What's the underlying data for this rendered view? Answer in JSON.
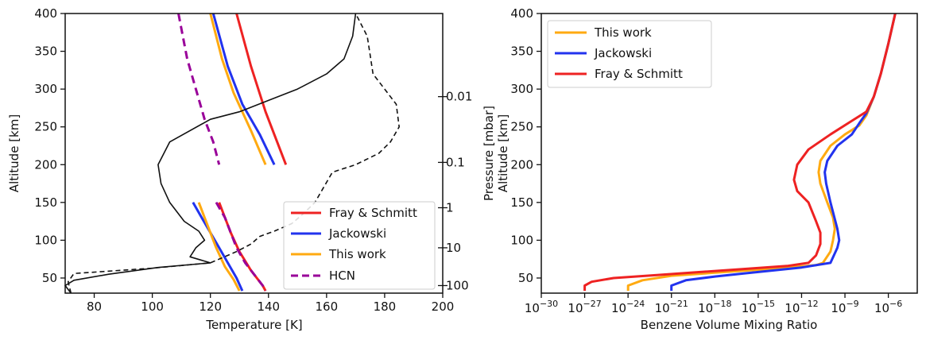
{
  "chart_data": [
    {
      "type": "line",
      "xlabel": "Temperature [K]",
      "ylabel": "Altitude [km]",
      "y2label": "Pressure [mbar]",
      "xlim": [
        70,
        200
      ],
      "ylim": [
        30,
        400
      ],
      "xticks": [
        80,
        100,
        120,
        140,
        160,
        180,
        200
      ],
      "yticks": [
        50,
        100,
        150,
        200,
        250,
        300,
        350,
        400
      ],
      "y2ticks": [
        {
          "label": "0.01",
          "altitude": 290
        },
        {
          "label": "0.1",
          "altitude": 203
        },
        {
          "label": "1",
          "altitude": 143
        },
        {
          "label": "10",
          "altitude": 90
        },
        {
          "label": "100",
          "altitude": 40
        }
      ],
      "grid": false,
      "legend_position": "lower-right",
      "legend": [
        "Fray & Schmitt",
        "Jackowski",
        "This work",
        "HCN"
      ],
      "series": [
        {
          "name": "Fray & Schmitt",
          "color": "#ee2222",
          "dash": false,
          "segments": [
            [
              [
                129,
                400
              ],
              [
                134,
                330
              ],
              [
                139,
                270
              ],
              [
                143,
                230
              ],
              [
                146,
                200
              ]
            ],
            [
              [
                123,
                150
              ],
              [
                125,
                130
              ],
              [
                127,
                110
              ],
              [
                130,
                85
              ],
              [
                134,
                60
              ],
              [
                138,
                40
              ],
              [
                139,
                33
              ]
            ]
          ]
        },
        {
          "name": "Jackowski",
          "color": "#2233ee",
          "dash": false,
          "segments": [
            [
              [
                121,
                400
              ],
              [
                126,
                330
              ],
              [
                131,
                280
              ],
              [
                137,
                240
              ],
              [
                142,
                200
              ]
            ],
            [
              [
                114,
                150
              ],
              [
                117,
                130
              ],
              [
                120,
                110
              ],
              [
                123,
                90
              ],
              [
                126,
                70
              ],
              [
                129,
                50
              ],
              [
                131,
                33
              ]
            ]
          ]
        },
        {
          "name": "This work",
          "color": "#ffaa11",
          "dash": false,
          "segments": [
            [
              [
                120,
                400
              ],
              [
                124,
                340
              ],
              [
                128,
                295
              ],
              [
                134,
                245
              ],
              [
                139,
                200
              ]
            ],
            [
              [
                116,
                150
              ],
              [
                118,
                130
              ],
              [
                120,
                110
              ],
              [
                122,
                90
              ],
              [
                125,
                65
              ],
              [
                128,
                48
              ],
              [
                130,
                33
              ]
            ]
          ]
        },
        {
          "name": "HCN",
          "color": "#990099",
          "dash": true,
          "segments": [
            [
              [
                109,
                400
              ],
              [
                112,
                340
              ],
              [
                115,
                300
              ],
              [
                118,
                260
              ],
              [
                121,
                230
              ],
              [
                123,
                200
              ]
            ],
            [
              [
                122,
                150
              ],
              [
                125,
                130
              ],
              [
                127,
                110
              ],
              [
                129,
                90
              ],
              [
                132,
                70
              ],
              [
                135,
                55
              ],
              [
                138,
                40
              ],
              [
                139,
                33
              ]
            ]
          ]
        },
        {
          "name": "",
          "color": "#111111",
          "dash": false,
          "segments": [
            [
              [
                72,
                30
              ],
              [
                70,
                40
              ],
              [
                73,
                47
              ],
              [
                85,
                55
              ],
              [
                102,
                64
              ],
              [
                120,
                70
              ],
              [
                113,
                78
              ],
              [
                115,
                90
              ],
              [
                118,
                100
              ],
              [
                116,
                112
              ],
              [
                111,
                125
              ],
              [
                106,
                150
              ],
              [
                103,
                175
              ],
              [
                102,
                200
              ],
              [
                106,
                230
              ],
              [
                120,
                260
              ],
              [
                130,
                270
              ],
              [
                140,
                285
              ],
              [
                150,
                300
              ],
              [
                160,
                320
              ],
              [
                166,
                340
              ],
              [
                169,
                370
              ],
              [
                170,
                400
              ]
            ]
          ]
        },
        {
          "name": "",
          "color": "#111111",
          "dash": true,
          "segments": [
            [
              [
                72,
                30
              ],
              [
                71,
                45
              ],
              [
                73,
                56
              ],
              [
                100,
                63
              ],
              [
                120,
                70
              ],
              [
                129,
                85
              ],
              [
                134,
                95
              ],
              [
                137,
                105
              ],
              [
                142,
                112
              ],
              [
                148,
                122
              ],
              [
                152,
                135
              ],
              [
                156,
                150
              ],
              [
                159,
                170
              ],
              [
                162,
                190
              ],
              [
                170,
                200
              ],
              [
                178,
                215
              ],
              [
                182,
                230
              ],
              [
                185,
                250
              ],
              [
                184,
                280
              ],
              [
                180,
                300
              ],
              [
                176,
                320
              ],
              [
                175,
                345
              ],
              [
                174,
                370
              ],
              [
                172,
                385
              ],
              [
                170,
                400
              ]
            ]
          ]
        }
      ]
    },
    {
      "type": "line",
      "xlabel": "Benzene Volume Mixing Ratio",
      "ylabel": "Altitude [km]",
      "xscale": "log",
      "xlim": [
        1e-30,
        0.0001
      ],
      "ylim": [
        30,
        400
      ],
      "xticks": [
        {
          "base": "10",
          "exp": "−30",
          "value": -30
        },
        {
          "base": "10",
          "exp": "−27",
          "value": -27
        },
        {
          "base": "10",
          "exp": "−24",
          "value": -24
        },
        {
          "base": "10",
          "exp": "−21",
          "value": -21
        },
        {
          "base": "10",
          "exp": "−18",
          "value": -18
        },
        {
          "base": "10",
          "exp": "−15",
          "value": -15
        },
        {
          "base": "10",
          "exp": "−12",
          "value": -12
        },
        {
          "base": "10",
          "exp": "−9",
          "value": -9
        },
        {
          "base": "10",
          "exp": "−6",
          "value": -6
        }
      ],
      "yticks": [
        50,
        100,
        150,
        200,
        250,
        300,
        350,
        400
      ],
      "grid": false,
      "legend_position": "upper-left",
      "legend": [
        "This work",
        "Jackowski",
        "Fray & Schmitt"
      ],
      "series": [
        {
          "name": "This work",
          "color": "#ffaa11",
          "x": [
            1e-24,
            1e-24,
            1e-23,
            1e-21,
            1e-18,
            1e-15,
            1e-13,
            1e-11,
            3e-11,
            1e-10,
            1.5e-10,
            2e-10,
            1.5e-10,
            6e-11,
            2e-11,
            1.5e-11,
            2e-11,
            1e-10,
            1e-09,
            1e-08,
            3e-08,
            1e-07,
            3e-07,
            1e-06,
            3e-06
          ],
          "y": [
            33,
            40,
            47,
            53,
            57,
            61,
            64,
            67,
            70,
            85,
            100,
            115,
            130,
            150,
            175,
            190,
            205,
            225,
            240,
            252,
            265,
            290,
            320,
            360,
            400
          ]
        },
        {
          "name": "Jackowski",
          "color": "#2233ee",
          "x": [
            1e-21,
            1e-21,
            1e-20,
            1e-18,
            1e-16,
            1e-14,
            1e-12,
            1e-10,
            3e-10,
            4e-10,
            3e-10,
            1e-10,
            5e-11,
            4e-11,
            6e-11,
            3e-10,
            3e-09,
            1e-08,
            3e-08,
            1e-07,
            3e-07,
            1e-06,
            3e-06
          ],
          "y": [
            33,
            40,
            47,
            52,
            56,
            60,
            64,
            70,
            90,
            100,
            115,
            150,
            175,
            190,
            205,
            225,
            240,
            255,
            268,
            290,
            320,
            360,
            400
          ]
        },
        {
          "name": "Fray & Schmitt",
          "color": "#ee2222",
          "x": [
            1e-27,
            1e-27,
            3e-27,
            1e-25,
            1e-22,
            1e-19,
            1e-16,
            1e-13,
            3e-12,
            1e-11,
            2e-11,
            2e-11,
            1e-11,
            3e-12,
            5e-13,
            3e-13,
            5e-13,
            3e-12,
            1e-10,
            3e-09,
            3e-08,
            1e-07,
            3e-07,
            1e-06,
            3e-06
          ],
          "y": [
            33,
            40,
            45,
            50,
            54,
            58,
            62,
            66,
            70,
            80,
            95,
            110,
            125,
            150,
            165,
            180,
            200,
            220,
            240,
            258,
            270,
            290,
            320,
            360,
            400
          ]
        }
      ]
    }
  ]
}
